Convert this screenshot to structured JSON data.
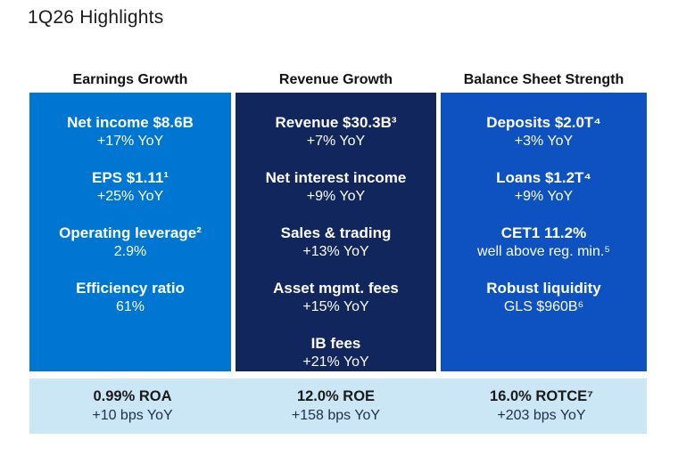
{
  "title": "1Q26 Highlights",
  "colors": {
    "earnings_panel_bg": "#0076d3",
    "revenue_panel_bg": "#12265e",
    "balance_panel_bg": "#0d52c0",
    "returns_bar_bg": "#cbe7f5",
    "panel_text": "#ffffff",
    "header_text": "#121212"
  },
  "columns": [
    {
      "header": "Earnings Growth",
      "items": [
        {
          "label": "Net income $8.6B",
          "value": "+17% YoY"
        },
        {
          "label": "EPS $1.11¹",
          "value": "+25% YoY"
        },
        {
          "label": "Operating leverage²",
          "value": "2.9%"
        },
        {
          "label": "Efficiency ratio",
          "value": "61%"
        }
      ],
      "footer": {
        "label": "0.99% ROA",
        "value": "+10 bps YoY"
      }
    },
    {
      "header": "Revenue Growth",
      "items": [
        {
          "label": "Revenue $30.3B³",
          "value": "+7% YoY"
        },
        {
          "label": "Net interest income",
          "value": "+9% YoY"
        },
        {
          "label": "Sales & trading",
          "value": "+13% YoY"
        },
        {
          "label": "Asset mgmt. fees",
          "value": "+15% YoY"
        },
        {
          "label": "IB fees",
          "value": "+21% YoY"
        }
      ],
      "footer": {
        "label": "12.0% ROE",
        "value": "+158 bps YoY"
      }
    },
    {
      "header": "Balance Sheet Strength",
      "items": [
        {
          "label": "Deposits $2.0T⁴",
          "value": "+3% YoY"
        },
        {
          "label": "Loans $1.2T⁴",
          "value": "+9% YoY"
        },
        {
          "label": "CET1 11.2%",
          "value": "well above reg. min.⁵"
        },
        {
          "label": "Robust liquidity",
          "value": "GLS $960B⁶"
        }
      ],
      "footer": {
        "label": "16.0% ROTCE⁷",
        "value": "+203 bps YoY"
      }
    }
  ]
}
